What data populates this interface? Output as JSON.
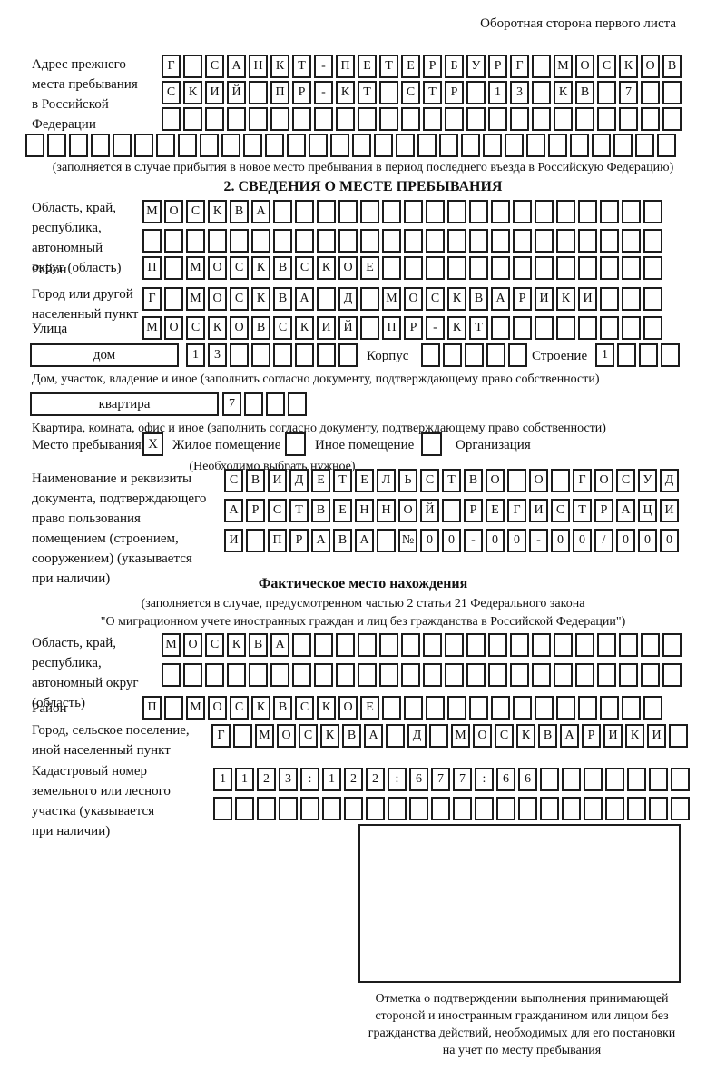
{
  "page": {
    "header_note": "Оборотная сторона первого листа"
  },
  "prev_address": {
    "label_lines": [
      "Адрес прежнего",
      "места пребывания",
      "в Российской",
      "Федерации"
    ],
    "rows": [
      "Г САНКТ-ПЕТЕРБУРГ МОСКОВ",
      "СКИЙ ПР-КТ СТР 13 КВ 7  ",
      "                        ",
      "                              "
    ],
    "note": "(заполняется в случае прибытия в новое место пребывания в период последнего въезда в Российскую Федерацию)"
  },
  "section2": {
    "title": "2. СВЕДЕНИЯ О МЕСТЕ ПРЕБЫВАНИЯ",
    "oblast": {
      "label_lines": [
        "Область, край,",
        "республика,",
        "автономный",
        "округ (область)"
      ],
      "rows": [
        "МОСКВА                  ",
        "                        "
      ]
    },
    "raion": {
      "label": "Район",
      "row": "П МОСКВСКОЕ             "
    },
    "gorod": {
      "label_lines": [
        "Город или другой",
        "населенный пункт"
      ],
      "row": "Г МОСКВА Д МОСКВАРИКИ   "
    },
    "ulitsa": {
      "label": "Улица",
      "row": "МОСКОВСКИЙ ПР-КТ        "
    },
    "dom": {
      "label": "дом",
      "boxes": "13      ",
      "korpus_label": "Корпус",
      "korpus_boxes": "     ",
      "stroenie_label": "Строение",
      "stroenie_boxes": "1   ",
      "note": "Дом, участок, владение и иное (заполнить согласно документу, подтверждающему право собственности)"
    },
    "kvartira": {
      "label": "квартира",
      "boxes": "7   ",
      "note": "Квартира, комната, офис и иное (заполнить согласно документу, подтверждающему право собственности)"
    },
    "mesto": {
      "label": "Место пребывания:",
      "options": [
        {
          "label": "Жилое помещение",
          "checked": "X"
        },
        {
          "label": "Иное помещение",
          "checked": ""
        },
        {
          "label": "Организация",
          "checked": ""
        }
      ],
      "note": "(Необходимо выбрать нужное)"
    },
    "document": {
      "label_lines": [
        "Наименование и реквизиты",
        "документа, подтверждающего",
        "право пользования",
        "помещением (строением,",
        "сооружением) (указывается",
        "при наличии)"
      ],
      "rows": [
        "СВИДЕТЕЛЬСТВО О ГОСУД",
        "АРСТВЕННОЙ РЕГИСТРАЦИ",
        "И ПРАВА №00-00-00/000"
      ]
    }
  },
  "fact_location": {
    "title": "Фактическое место нахождения",
    "note_lines": [
      "(заполняется в случае, предусмотренном частью 2 статьи 21 Федерального закона",
      "\"О миграционном учете иностранных граждан и лиц без гражданства в Российской Федерации\")"
    ],
    "oblast": {
      "label_lines": [
        "Область, край,",
        "республика,",
        "автономный округ",
        "(область)"
      ],
      "rows": [
        "МОСКВА                  ",
        "                        "
      ]
    },
    "raion": {
      "label": "Район",
      "row": "П МОСКВСКОЕ             "
    },
    "gorod": {
      "label_lines": [
        "Город, сельское поселение,",
        "иной населенный пункт"
      ],
      "row": "Г МОСКВА Д МОСКВАРИКИ "
    },
    "kadastr": {
      "label_lines": [
        "Кадастровый номер",
        "земельного или лесного",
        "участка (указывается",
        "при наличии)"
      ],
      "rows": [
        "1123:122:677:66       ",
        "                      "
      ]
    },
    "stamp_note_lines": [
      "Отметка о подтверждении выполнения принимающей",
      "стороной и иностранным гражданином или лицом без",
      "гражданства действий, необходимых для его постановки",
      "на учет по месту пребывания"
    ]
  }
}
